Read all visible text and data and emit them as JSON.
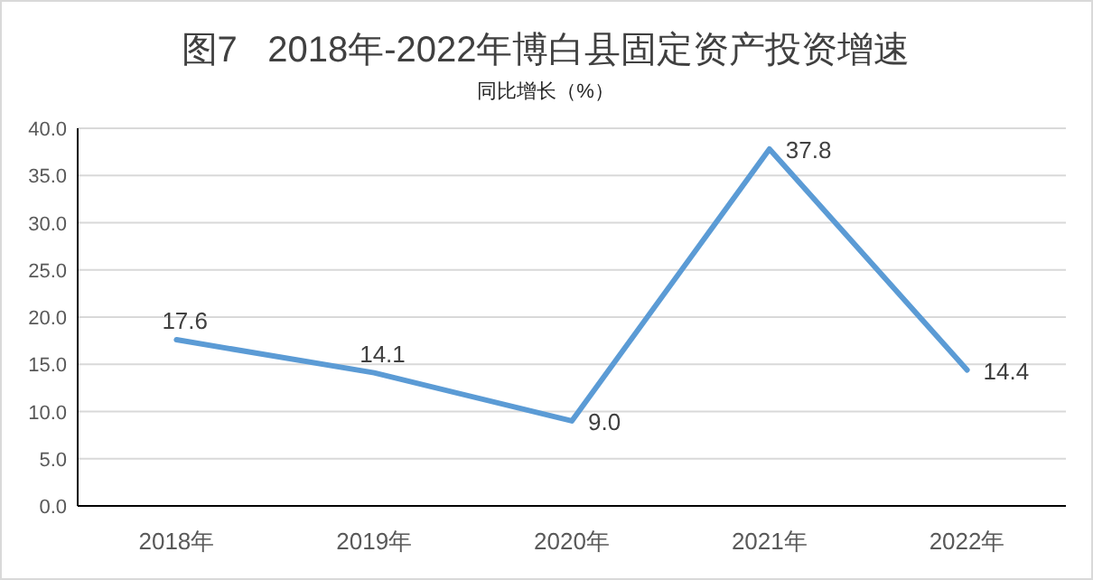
{
  "chart_data": {
    "type": "line",
    "title": "图7   2018年-2022年博白县固定资产投资增速",
    "subtitle": "同比增长（%）",
    "categories": [
      "2018年",
      "2019年",
      "2020年",
      "2021年",
      "2022年"
    ],
    "series": [
      {
        "color": "#5b9bd5",
        "values": [
          17.6,
          14.1,
          9.0,
          37.8,
          14.4
        ],
        "value_labels": [
          "17.6",
          "14.1",
          "9.0",
          "37.8",
          "14.4"
        ]
      }
    ],
    "ylim": [
      0,
      40
    ],
    "yticks": [
      {
        "value": 0,
        "label": "0.0"
      },
      {
        "value": 5,
        "label": "5.0"
      },
      {
        "value": 10,
        "label": "10.0"
      },
      {
        "value": 15,
        "label": "15.0"
      },
      {
        "value": 20,
        "label": "20.0"
      },
      {
        "value": 25,
        "label": "25.0"
      },
      {
        "value": 30,
        "label": "30.0"
      },
      {
        "value": 35,
        "label": "35.0"
      },
      {
        "value": 40,
        "label": "40.0"
      }
    ],
    "grid": "y",
    "marker": "none",
    "line_style": "solid"
  }
}
